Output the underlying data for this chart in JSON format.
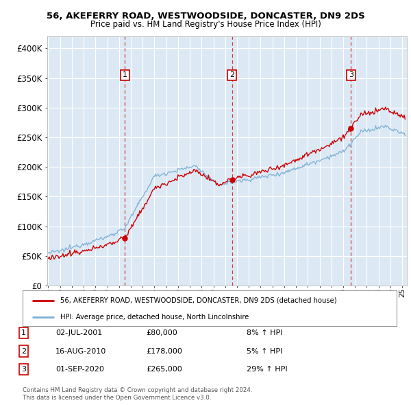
{
  "title_line1": "56, AKEFERRY ROAD, WESTWOODSIDE, DONCASTER, DN9 2DS",
  "title_line2": "Price paid vs. HM Land Registry's House Price Index (HPI)",
  "ylim": [
    0,
    420000
  ],
  "yticks": [
    0,
    50000,
    100000,
    150000,
    200000,
    250000,
    300000,
    350000,
    400000
  ],
  "ytick_labels": [
    "£0",
    "£50K",
    "£100K",
    "£150K",
    "£200K",
    "£250K",
    "£300K",
    "£350K",
    "£400K"
  ],
  "background_color": "#ffffff",
  "plot_background": "#dce9f5",
  "grid_color": "#ffffff",
  "sale_color": "#cc0000",
  "hpi_color": "#7bafd4",
  "sale_label": "56, AKEFERRY ROAD, WESTWOODSIDE, DONCASTER, DN9 2DS (detached house)",
  "hpi_label": "HPI: Average price, detached house, North Lincolnshire",
  "transaction_prices": [
    80000,
    178000,
    265000
  ],
  "transaction_labels": [
    "1",
    "2",
    "3"
  ],
  "transaction_hpi_pct": [
    "8% ↑ HPI",
    "5% ↑ HPI",
    "29% ↑ HPI"
  ],
  "transaction_display_dates": [
    "02-JUL-2001",
    "16-AUG-2010",
    "01-SEP-2020"
  ],
  "footer_line1": "Contains HM Land Registry data © Crown copyright and database right 2024.",
  "footer_line2": "This data is licensed under the Open Government Licence v3.0."
}
